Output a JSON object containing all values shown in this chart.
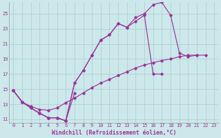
{
  "background_color": "#cce8ea",
  "grid_color": "#aacccc",
  "line_color": "#993399",
  "xlim": [
    -0.5,
    23.5
  ],
  "ylim": [
    10.5,
    26.5
  ],
  "xticks": [
    0,
    1,
    2,
    3,
    4,
    5,
    6,
    7,
    8,
    9,
    10,
    11,
    12,
    13,
    14,
    15,
    16,
    17,
    18,
    19,
    20,
    21,
    22,
    23
  ],
  "yticks": [
    11,
    13,
    15,
    17,
    19,
    21,
    23,
    25
  ],
  "xlabel": "Windchill (Refroidissement éolien,°C)",
  "xlabel_fontsize": 5.8,
  "tick_fontsize": 5.0,
  "line1_y": [
    14.8,
    13.3,
    12.5,
    11.8,
    11.2,
    11.2,
    10.8,
    14.5,
    null,
    null,
    null,
    null,
    null,
    null,
    null,
    null,
    null,
    null,
    null,
    null,
    null,
    null,
    null,
    null
  ],
  "line2_y": [
    14.8,
    13.3,
    12.5,
    11.8,
    11.2,
    11.2,
    10.8,
    15.8,
    17.5,
    19.5,
    21.5,
    22.2,
    23.7,
    23.2,
    24.0,
    24.8,
    17.0,
    17.0,
    null,
    null,
    null,
    null,
    null,
    null
  ],
  "line3_y": [
    14.8,
    13.3,
    12.5,
    11.8,
    11.2,
    11.2,
    10.8,
    15.8,
    17.5,
    19.5,
    21.5,
    22.2,
    23.7,
    23.2,
    24.5,
    25.0,
    26.2,
    26.5,
    24.8,
    19.8,
    19.3,
    19.5,
    null,
    null
  ],
  "line4_y": [
    14.8,
    13.3,
    12.7,
    12.3,
    12.2,
    12.5,
    13.2,
    13.8,
    14.5,
    15.2,
    15.8,
    16.3,
    16.8,
    17.3,
    17.8,
    18.2,
    18.5,
    18.8,
    19.0,
    19.3,
    19.5,
    19.5,
    19.5,
    null
  ]
}
